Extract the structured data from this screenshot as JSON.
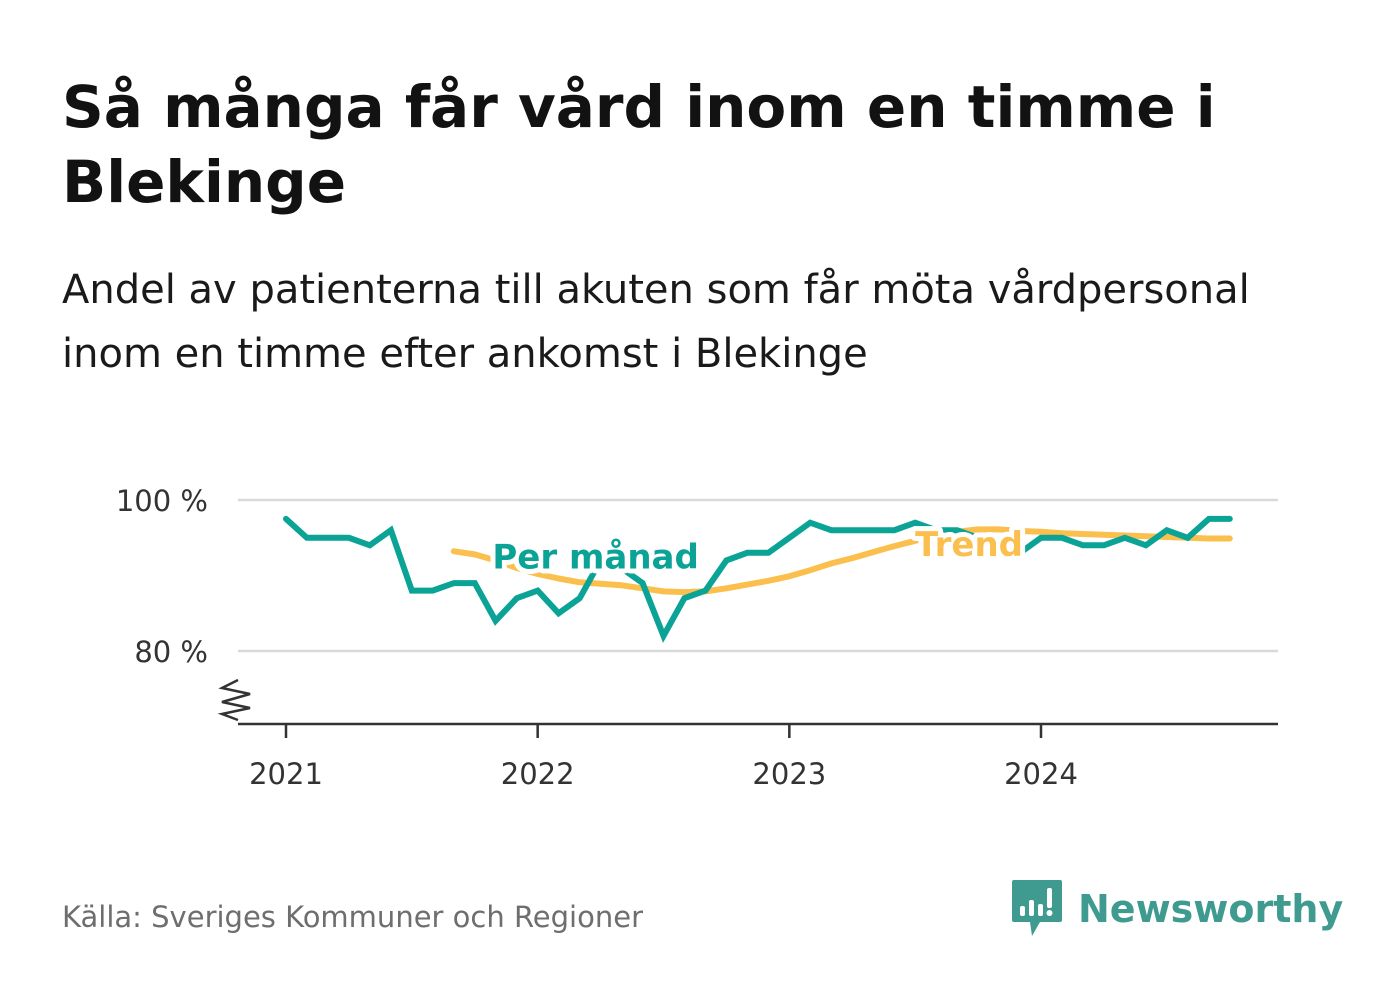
{
  "title": "Så många får vård inom en timme i Blekinge",
  "subtitle": "Andel av patienterna till akuten som får möta vårdpersonal inom en timme efter ankomst i Blekinge",
  "source": "Källa: Sveriges Kommuner och Regioner",
  "brand": {
    "name": "Newsworthy",
    "icon": "newsworthy-logo-icon"
  },
  "colors": {
    "monthly": "#0aa396",
    "trend": "#fbbf4e",
    "grid": "#d9d9d9",
    "axis": "#333333",
    "brand": "#3f9b8f"
  },
  "chart_data": {
    "type": "line",
    "title": "",
    "xlabel": "",
    "ylabel": "",
    "ylim": [
      70,
      100
    ],
    "y_ticks": [
      {
        "value": 80,
        "label": "80 %"
      },
      {
        "value": 100,
        "label": "100 %"
      }
    ],
    "x_ticks": [
      {
        "value": 2021,
        "label": "2021"
      },
      {
        "value": 2022,
        "label": "2022"
      },
      {
        "value": 2023,
        "label": "2023"
      },
      {
        "value": 2024,
        "label": "2024"
      }
    ],
    "y_axis_break": true,
    "grid": true,
    "legend": "inline labels",
    "series": [
      {
        "name": "Per månad",
        "label_at": [
          2021.82,
          92.5
        ],
        "x": [
          2021.0,
          2021.083,
          2021.167,
          2021.25,
          2021.333,
          2021.417,
          2021.5,
          2021.583,
          2021.667,
          2021.75,
          2021.833,
          2021.917,
          2022.0,
          2022.083,
          2022.167,
          2022.25,
          2022.333,
          2022.417,
          2022.5,
          2022.583,
          2022.667,
          2022.75,
          2022.833,
          2022.917,
          2023.0,
          2023.083,
          2023.167,
          2023.25,
          2023.333,
          2023.417,
          2023.5,
          2023.583,
          2023.667,
          2023.75,
          2023.833,
          2023.917,
          2024.0,
          2024.083,
          2024.167,
          2024.25,
          2024.333,
          2024.417,
          2024.5,
          2024.583,
          2024.667,
          2024.75
        ],
        "y": [
          97.5,
          95,
          95,
          95,
          94,
          96,
          88,
          88,
          89,
          89,
          84,
          87,
          88,
          85,
          87,
          92,
          91,
          89,
          82,
          87,
          88,
          92,
          93,
          93,
          95,
          97,
          96,
          96,
          96,
          96,
          97,
          96,
          96,
          95,
          94,
          93,
          95,
          95,
          94,
          94,
          95,
          94,
          96,
          95,
          97.5,
          97.5
        ]
      },
      {
        "name": "Trend",
        "label_at": [
          2023.5,
          94.2
        ],
        "x": [
          2021.667,
          2021.75,
          2021.833,
          2021.917,
          2022.0,
          2022.083,
          2022.167,
          2022.25,
          2022.333,
          2022.417,
          2022.5,
          2022.583,
          2022.667,
          2022.75,
          2022.833,
          2022.917,
          2023.0,
          2023.083,
          2023.167,
          2023.25,
          2023.333,
          2023.417,
          2023.5,
          2023.583,
          2023.667,
          2023.75,
          2023.833,
          2023.917,
          2024.0,
          2024.083,
          2024.167,
          2024.25,
          2024.333,
          2024.417,
          2024.5,
          2024.583,
          2024.667,
          2024.75
        ],
        "y": [
          93.2,
          92.8,
          92.0,
          91.0,
          90.2,
          89.6,
          89.1,
          88.9,
          88.7,
          88.3,
          87.9,
          87.8,
          87.9,
          88.3,
          88.8,
          89.3,
          89.9,
          90.7,
          91.6,
          92.3,
          93.1,
          93.9,
          94.6,
          95.3,
          95.8,
          96.1,
          96.1,
          95.9,
          95.8,
          95.6,
          95.5,
          95.4,
          95.3,
          95.2,
          95.1,
          95.0,
          94.9,
          94.9
        ]
      }
    ]
  }
}
